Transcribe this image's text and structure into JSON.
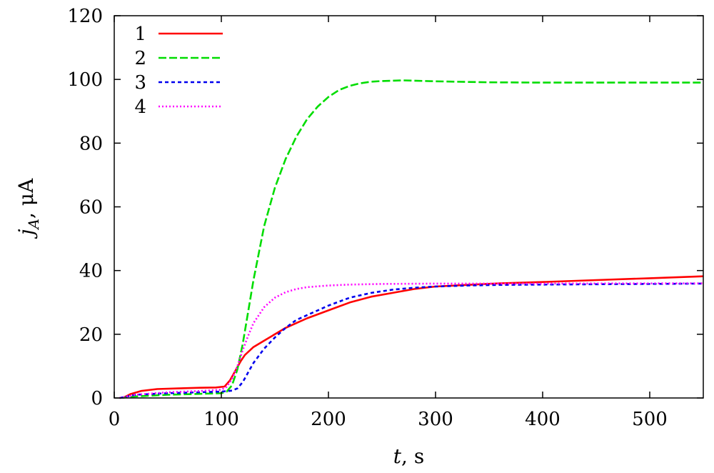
{
  "chart_data": {
    "type": "line",
    "title": "",
    "xlabel_var": "t",
    "xlabel_unit": ", s",
    "ylabel_var": "j",
    "ylabel_sub": "A",
    "ylabel_unit": ", μA",
    "xlim": [
      0,
      550
    ],
    "ylim": [
      0,
      120
    ],
    "xticks": [
      0,
      100,
      200,
      300,
      400,
      500
    ],
    "yticks": [
      0,
      20,
      40,
      60,
      80,
      100,
      120
    ],
    "grid": false,
    "legend_position": "top-left",
    "series": [
      {
        "name": "1",
        "color": "#ff0000",
        "dash": "solid",
        "x": [
          8,
          15,
          25,
          40,
          60,
          80,
          95,
          103,
          108,
          113,
          118,
          122,
          130,
          140,
          150,
          160,
          170,
          180,
          200,
          220,
          240,
          260,
          280,
          300,
          330,
          360,
          400,
          450,
          500,
          550
        ],
        "y": [
          0,
          1.2,
          2.2,
          2.8,
          3.0,
          3.2,
          3.3,
          3.6,
          5.5,
          8.5,
          11.5,
          13.5,
          16.0,
          18.0,
          20.0,
          22.0,
          23.5,
          25.0,
          27.5,
          30.0,
          31.8,
          33.0,
          34.2,
          35.0,
          35.5,
          36.0,
          36.4,
          37.0,
          37.6,
          38.2
        ]
      },
      {
        "name": "2",
        "color": "#00dd00",
        "dash": "long-dash",
        "x": [
          5,
          20,
          50,
          80,
          100,
          105,
          110,
          115,
          120,
          125,
          130,
          140,
          150,
          160,
          170,
          180,
          190,
          200,
          210,
          220,
          230,
          240,
          250,
          270,
          300,
          350,
          400,
          450,
          500,
          550
        ],
        "y": [
          0,
          0.5,
          1.0,
          1.3,
          1.5,
          2.0,
          4.0,
          9.0,
          17.0,
          27.0,
          37.0,
          54.0,
          66.0,
          75.0,
          82.0,
          87.5,
          91.5,
          94.5,
          96.7,
          98.0,
          98.8,
          99.3,
          99.5,
          99.7,
          99.4,
          99.1,
          99.0,
          99.0,
          99.0,
          99.0
        ]
      },
      {
        "name": "3",
        "color": "#0000ee",
        "dash": "short-dash",
        "x": [
          5,
          20,
          50,
          80,
          100,
          110,
          115,
          120,
          125,
          130,
          140,
          150,
          160,
          170,
          180,
          200,
          220,
          240,
          260,
          280,
          300,
          330,
          360,
          400,
          450,
          500,
          550
        ],
        "y": [
          0,
          1.0,
          1.5,
          1.8,
          2.0,
          2.3,
          3.0,
          5.0,
          8.0,
          11.0,
          15.5,
          19.0,
          22.0,
          24.5,
          26.0,
          29.0,
          31.5,
          33.0,
          34.0,
          34.6,
          35.0,
          35.3,
          35.5,
          35.6,
          35.7,
          35.8,
          35.9
        ]
      },
      {
        "name": "4",
        "color": "#ff00ff",
        "dash": "dotted",
        "x": [
          5,
          20,
          50,
          80,
          100,
          105,
          110,
          115,
          120,
          125,
          130,
          140,
          150,
          160,
          170,
          180,
          200,
          220,
          250,
          300,
          400,
          550
        ],
        "y": [
          0,
          1.0,
          1.8,
          2.2,
          2.6,
          3.5,
          6.0,
          10.0,
          15.0,
          19.5,
          23.5,
          28.5,
          31.5,
          33.2,
          34.2,
          34.8,
          35.3,
          35.6,
          35.8,
          35.9,
          35.9,
          36.0
        ]
      }
    ]
  }
}
